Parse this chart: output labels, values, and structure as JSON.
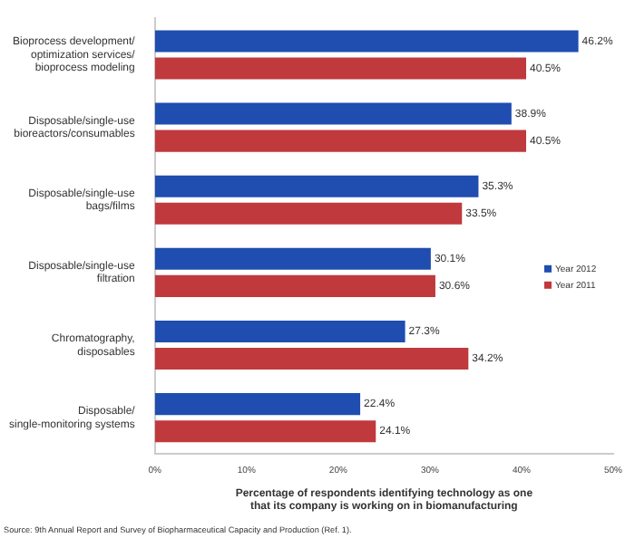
{
  "chart_data": {
    "type": "bar",
    "orientation": "horizontal",
    "categories": [
      "Bioprocess development/\noptimization services/\nbioprocess modeling",
      "Disposable/single-use\nbioreactors/consumables",
      "Disposable/single-use\nbags/films",
      "Disposable/single-use\nfiltration",
      "Chromatography,\ndisposables",
      "Disposable/\nsingle-monitoring systems"
    ],
    "series": [
      {
        "name": "Year 2012",
        "color": "#1f4db0",
        "values": [
          46.2,
          38.9,
          35.3,
          30.1,
          27.3,
          22.4
        ],
        "value_labels": [
          "46.2%",
          "38.9%",
          "35.3%",
          "30.1%",
          "27.3%",
          "22.4%"
        ]
      },
      {
        "name": "Year 2011",
        "color": "#c0393d",
        "values": [
          40.5,
          40.5,
          33.5,
          30.6,
          34.2,
          24.1
        ],
        "value_labels": [
          "40.5%",
          "40.5%",
          "33.5%",
          "30.6%",
          "34.2%",
          "24.1%"
        ]
      }
    ],
    "xlim": [
      0,
      50
    ],
    "xticks": [
      {
        "value": 0,
        "label": "0%"
      },
      {
        "value": 10,
        "label": "10%"
      },
      {
        "value": 20,
        "label": "20%"
      },
      {
        "value": 30,
        "label": "30%"
      },
      {
        "value": 40,
        "label": "40%"
      },
      {
        "value": 50,
        "label": "50%"
      }
    ],
    "xlabel": "Percentage of respondents identifying technology as one\nthat its company is working on in biomanufacturing",
    "legend": "right",
    "grid": false,
    "annotations": [
      "Source: 9th Annual Report and Survey of Biopharmaceutical Capacity and Production (Ref. 1)."
    ]
  }
}
